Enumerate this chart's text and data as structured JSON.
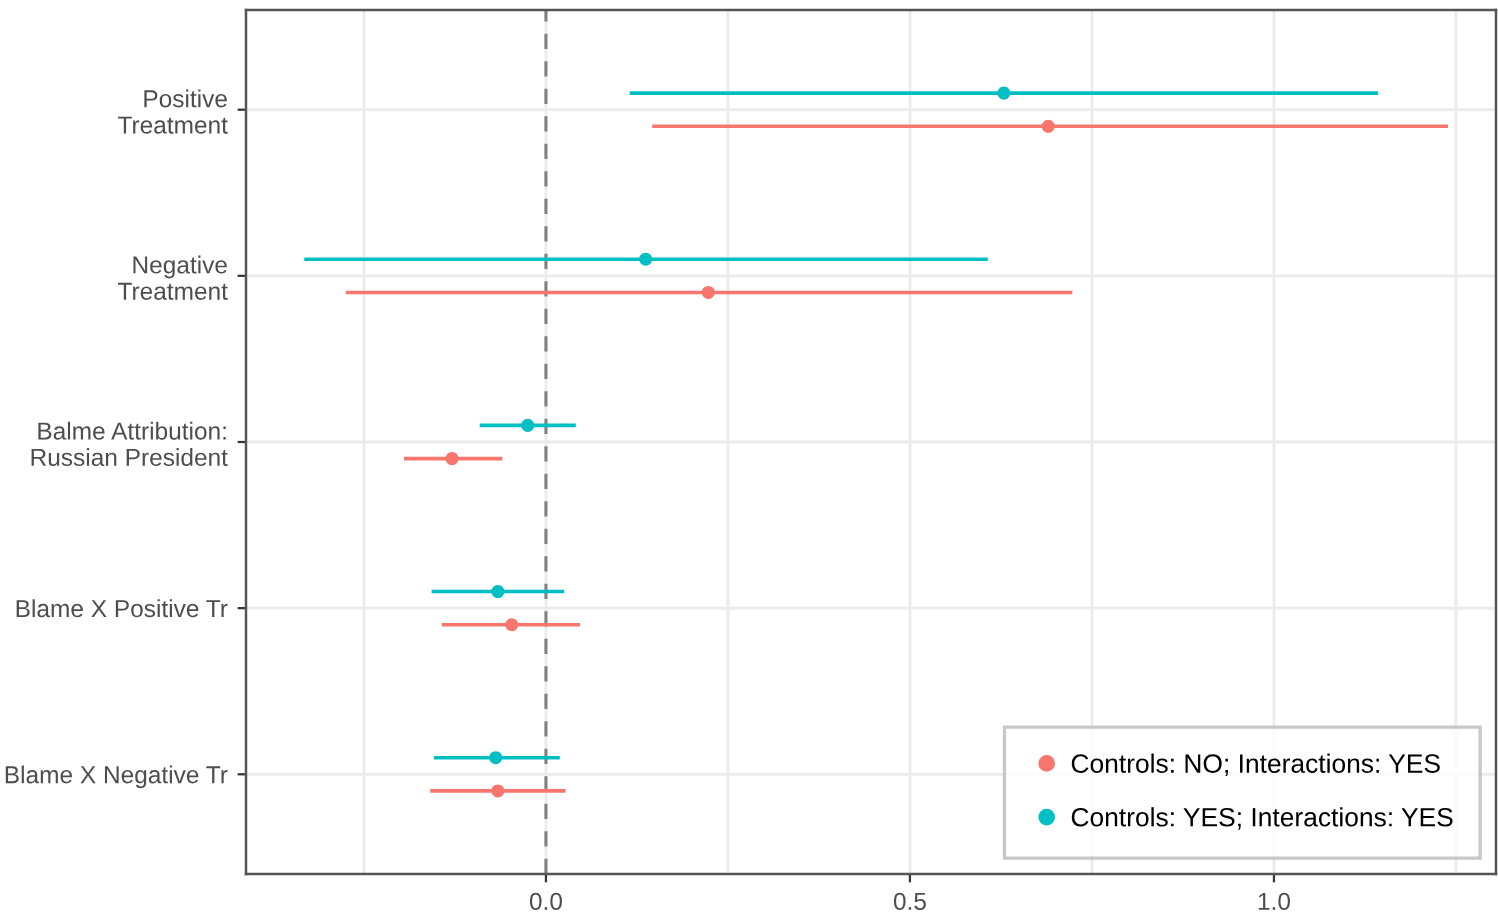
{
  "chart_data": {
    "type": "scatter",
    "orientation": "horizontal",
    "categories": [
      "Positive\nTreatment",
      "Negative\nTreatment",
      "Balme Attribution:\nRussian President",
      "Blame X Positive Tr",
      "Blame X Negative Tr"
    ],
    "series": [
      {
        "name": "Controls: NO; Interactions: YES",
        "color": "#f8766d",
        "values": [
          0.69,
          0.223,
          -0.129,
          -0.047,
          -0.066
        ],
        "errors": [
          [
            0.146,
            1.239
          ],
          [
            -0.275,
            0.723
          ],
          [
            -0.195,
            -0.06
          ],
          [
            -0.143,
            0.047
          ],
          [
            -0.159,
            0.027
          ]
        ]
      },
      {
        "name": "Controls: YES; Interactions: YES",
        "color": "#00bfc4",
        "values": [
          0.629,
          0.137,
          -0.025,
          -0.066,
          -0.069
        ],
        "errors": [
          [
            0.115,
            1.143
          ],
          [
            -0.332,
            0.607
          ],
          [
            -0.091,
            0.041
          ],
          [
            -0.157,
            0.025
          ],
          [
            -0.154,
            0.019
          ]
        ]
      }
    ],
    "xlim": [
      -0.412,
      1.305
    ],
    "xticks": [
      {
        "value": -0.25,
        "label": null
      },
      {
        "value": 0,
        "label": "0.0"
      },
      {
        "value": 0.25,
        "label": null
      },
      0.5,
      {
        "value": 0.75,
        "label": null
      },
      {
        "value": 1,
        "label": "1.0"
      },
      {
        "value": 1.25,
        "label": null
      }
    ],
    "ref_lines": [
      {
        "axis": "x",
        "value": 0,
        "color": "#808080",
        "line_style": "dashed"
      }
    ],
    "grid": true,
    "legend": "bottom right",
    "marker": "circle"
  }
}
